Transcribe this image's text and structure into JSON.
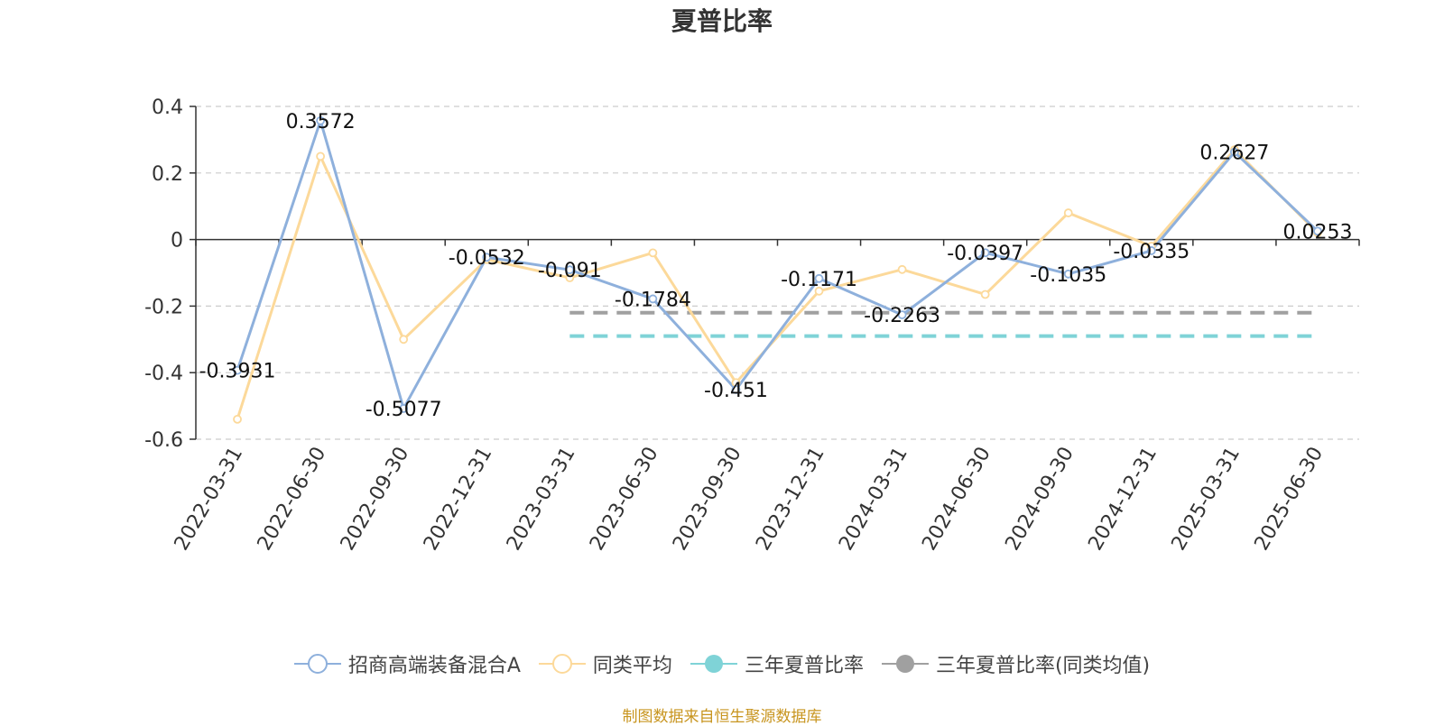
{
  "title": "夏普比率",
  "source": "制图数据来自恒生聚源数据库",
  "chart_data": {
    "type": "line",
    "categories": [
      "2022-03-31",
      "2022-06-30",
      "2022-09-30",
      "2022-12-31",
      "2023-03-31",
      "2023-06-30",
      "2023-09-30",
      "2023-12-31",
      "2024-03-31",
      "2024-06-30",
      "2024-09-30",
      "2024-12-31",
      "2025-03-31",
      "2025-06-30"
    ],
    "ylim": [
      -0.6,
      0.4
    ],
    "yticks": [
      0.4,
      0.2,
      0,
      -0.2,
      -0.4,
      -0.6
    ],
    "ytick_labels": [
      "0.4",
      "0.2",
      "0",
      "-0.2",
      "-0.4",
      "-0.6"
    ],
    "grid": true,
    "legend_position": "bottom",
    "series": [
      {
        "name": "招商高端装备混合A",
        "color": "#8eb0dc",
        "values": [
          -0.3931,
          0.3572,
          -0.5077,
          -0.0532,
          -0.091,
          -0.1784,
          -0.451,
          -0.1171,
          -0.2263,
          -0.0397,
          -0.1035,
          -0.0335,
          0.2627,
          0.0253
        ],
        "labels": [
          "-0.3931",
          "0.3572",
          "-0.5077",
          "-0.0532",
          "-0.091",
          "-0.1784",
          "-0.451",
          "-0.1171",
          "-0.2263",
          "-0.0397",
          "-0.1035",
          "-0.0335",
          "0.2627",
          "0.0253"
        ]
      },
      {
        "name": "同类平均",
        "color": "#fcd99a",
        "values": [
          -0.54,
          0.25,
          -0.3,
          -0.06,
          -0.115,
          -0.04,
          -0.43,
          -0.155,
          -0.09,
          -0.165,
          0.08,
          -0.02,
          0.27,
          0.02
        ]
      }
    ],
    "reference_lines": [
      {
        "name": "三年夏普比率",
        "color": "#7fd3d7",
        "value": -0.29,
        "from": "2023-03-31",
        "to": "2025-06-30"
      },
      {
        "name": "三年夏普比率(同类均值)",
        "color": "#a0a0a0",
        "value": -0.22,
        "from": "2023-03-31",
        "to": "2025-06-30"
      }
    ]
  }
}
